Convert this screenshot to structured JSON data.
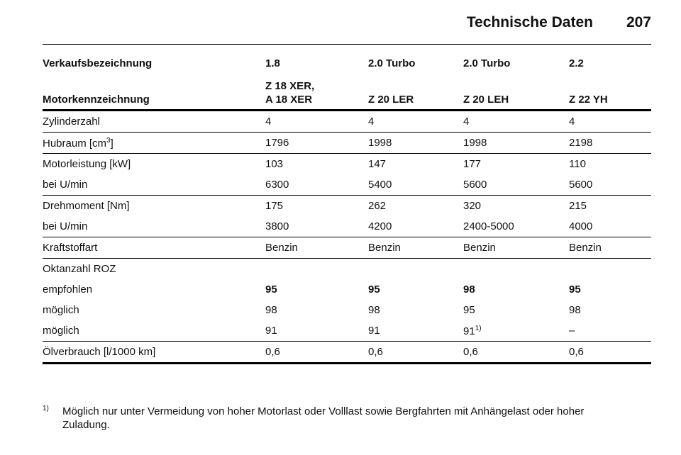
{
  "header": {
    "title": "Technische Daten",
    "page": "207"
  },
  "table": {
    "head": [
      [
        "Verkaufsbezeichnung",
        "1.8",
        "2.0 Turbo",
        "2.0 Turbo",
        "2.2"
      ],
      [
        "Motorkennzeichnung",
        "Z 18 XER,\nA 18 XER",
        "Z 20 LER",
        "Z 20 LEH",
        "Z 22 YH"
      ]
    ],
    "groups": [
      [
        {
          "cells": [
            "Zylinderzahl",
            "4",
            "4",
            "4",
            "4"
          ]
        }
      ],
      [
        {
          "cells": [
            {
              "text": "Hubraum [cm",
              "sup": "3",
              "tail": "]"
            },
            "1796",
            "1998",
            "1998",
            "2198"
          ]
        }
      ],
      [
        {
          "cells": [
            "Motorleistung [kW]",
            "103",
            "147",
            "177",
            "110"
          ]
        },
        {
          "cells": [
            "bei U/min",
            "6300",
            "5400",
            "5600",
            "5600"
          ]
        }
      ],
      [
        {
          "cells": [
            "Drehmoment [Nm]",
            "175",
            "262",
            "320",
            "215"
          ]
        },
        {
          "cells": [
            "bei U/min",
            "3800",
            "4200",
            "2400-5000",
            "4000"
          ]
        }
      ],
      [
        {
          "cells": [
            "Kraftstoffart",
            "Benzin",
            "Benzin",
            "Benzin",
            "Benzin"
          ]
        }
      ],
      [
        {
          "cells": [
            "Oktanzahl ROZ"
          ]
        },
        {
          "cells": [
            "empfohlen",
            "95",
            "95",
            "98",
            "95"
          ],
          "bold": true
        },
        {
          "cells": [
            "möglich",
            "98",
            "98",
            "95",
            "98"
          ]
        },
        {
          "cells": [
            "möglich",
            "91",
            "91",
            {
              "text": "91",
              "sup": "1)"
            },
            "–"
          ]
        }
      ],
      [
        {
          "cells": [
            "Ölverbrauch [l/1000 km]",
            "0,6",
            "0,6",
            "0,6",
            "0,6"
          ]
        }
      ]
    ]
  },
  "footnote": {
    "marker": "1)",
    "text": "Möglich nur unter Vermeidung von hoher Motorlast oder Volllast sowie Bergfahrten mit Anhängelast oder hoher Zuladung."
  }
}
